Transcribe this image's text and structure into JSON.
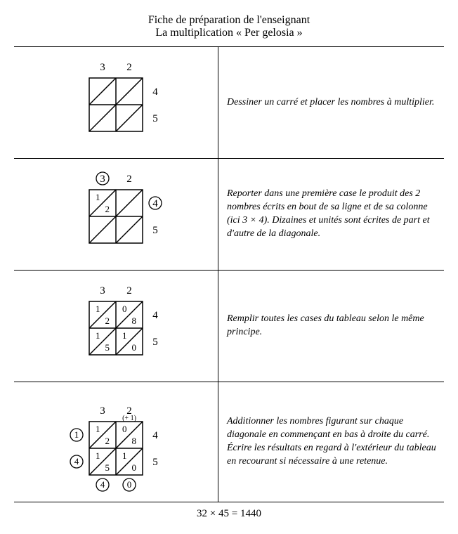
{
  "header": {
    "line1": "Fiche de préparation de l'enseignant",
    "line2": "La multiplication « Per gelosia »"
  },
  "rows": [
    {
      "desc": "Dessiner un carré et placer les nombres à multiplier.",
      "top": [
        "3",
        "2"
      ],
      "right": [
        "4",
        "5"
      ],
      "topCircled": [
        false,
        false
      ],
      "rightCircled": [
        false,
        false
      ],
      "cells": [
        [
          "",
          ""
        ],
        [
          "",
          ""
        ],
        [
          "",
          ""
        ],
        [
          "",
          ""
        ]
      ],
      "leftOut": [
        "",
        ""
      ],
      "bottomOut": [
        "",
        ""
      ],
      "carry": ""
    },
    {
      "desc": "Reporter dans une première case le produit des 2 nombres écrits en bout de sa ligne et de sa colonne (ici 3 × 4). Dizaines et unités sont écrites de part et d'autre de la  diagonale.",
      "top": [
        "3",
        "2"
      ],
      "right": [
        "4",
        "5"
      ],
      "topCircled": [
        true,
        false
      ],
      "rightCircled": [
        true,
        false
      ],
      "cells": [
        [
          "1",
          "2"
        ],
        [
          "",
          ""
        ],
        [
          "",
          ""
        ],
        [
          "",
          ""
        ]
      ],
      "leftOut": [
        "",
        ""
      ],
      "bottomOut": [
        "",
        ""
      ],
      "carry": ""
    },
    {
      "desc": "Remplir toutes les cases du tableau selon le même principe.",
      "top": [
        "3",
        "2"
      ],
      "right": [
        "4",
        "5"
      ],
      "topCircled": [
        false,
        false
      ],
      "rightCircled": [
        false,
        false
      ],
      "cells": [
        [
          "1",
          "2"
        ],
        [
          "0",
          "8"
        ],
        [
          "1",
          "5"
        ],
        [
          "1",
          "0"
        ]
      ],
      "leftOut": [
        "",
        ""
      ],
      "bottomOut": [
        "",
        ""
      ],
      "carry": ""
    },
    {
      "desc": "Additionner les nombres figurant sur chaque diagonale en commençant en bas à droite du carré. Écrire les résultats en regard à l'extérieur du tableau en recourant si nécessaire à une retenue.",
      "top": [
        "3",
        "2"
      ],
      "right": [
        "4",
        "5"
      ],
      "topCircled": [
        false,
        false
      ],
      "rightCircled": [
        false,
        false
      ],
      "cells": [
        [
          "1",
          "2"
        ],
        [
          "0",
          "8"
        ],
        [
          "1",
          "5"
        ],
        [
          "1",
          "0"
        ]
      ],
      "leftOut": [
        "1",
        "4"
      ],
      "bottomOut": [
        "4",
        "0"
      ],
      "carry": "(+ 1)"
    }
  ],
  "footer": "32 × 45 = 1440",
  "style": {
    "cellSize": 38,
    "stroke": "#000",
    "strokeWidth": 1.5,
    "circleR": 9
  }
}
